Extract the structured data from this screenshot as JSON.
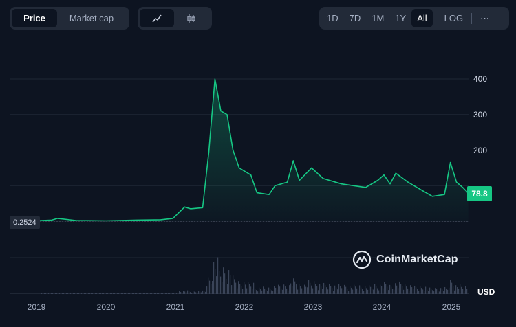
{
  "toolbar": {
    "type_tabs": [
      "Price",
      "Market cap"
    ],
    "active_type": "Price",
    "chart_modes": [
      {
        "icon": "line-chart-icon"
      },
      {
        "icon": "candlestick-icon"
      }
    ],
    "range_tabs": [
      "1D",
      "7D",
      "1M",
      "1Y",
      "All"
    ],
    "active_range": "All",
    "log_label": "LOG",
    "more_label": "⋯"
  },
  "chart": {
    "current_price_label": "78.8",
    "low_label": "0.2524",
    "currency_label": "USD",
    "watermark": "CoinMarketCap",
    "line_color": "#16c784",
    "volume_color": "#3a4458"
  },
  "chart_data": {
    "type": "area",
    "y_ticks": [
      400,
      300,
      200
    ],
    "x_ticks": [
      "2019",
      "2020",
      "2021",
      "2022",
      "2023",
      "2024",
      "2025"
    ],
    "ylim": [
      0,
      400
    ],
    "grid": true,
    "series": [
      {
        "x": [
          "2018-11",
          "2019-03",
          "2019-06",
          "2019-07",
          "2019-10",
          "2020-03",
          "2020-08",
          "2020-12",
          "2021-02",
          "2021-04",
          "2021-05",
          "2021-07",
          "2021-08",
          "2021-09",
          "2021-10",
          "2021-11",
          "2021-12",
          "2022-01",
          "2022-03",
          "2022-04",
          "2022-06",
          "2022-07",
          "2022-09",
          "2022-10",
          "2022-11",
          "2023-01",
          "2023-03",
          "2023-06",
          "2023-08",
          "2023-10",
          "2023-12",
          "2024-01",
          "2024-02",
          "2024-03",
          "2024-05",
          "2024-07",
          "2024-09",
          "2024-11",
          "2024-12",
          "2025-01",
          "2025-02",
          "2025-03"
        ],
        "values": [
          0.25,
          1,
          3,
          8,
          2,
          1,
          3,
          4,
          8,
          40,
          35,
          38,
          195,
          400,
          310,
          300,
          200,
          150,
          130,
          80,
          75,
          100,
          110,
          170,
          115,
          150,
          120,
          105,
          100,
          95,
          115,
          130,
          105,
          135,
          110,
          90,
          70,
          75,
          165,
          110,
          95,
          78.8
        ]
      }
    ],
    "volume": "shown"
  }
}
